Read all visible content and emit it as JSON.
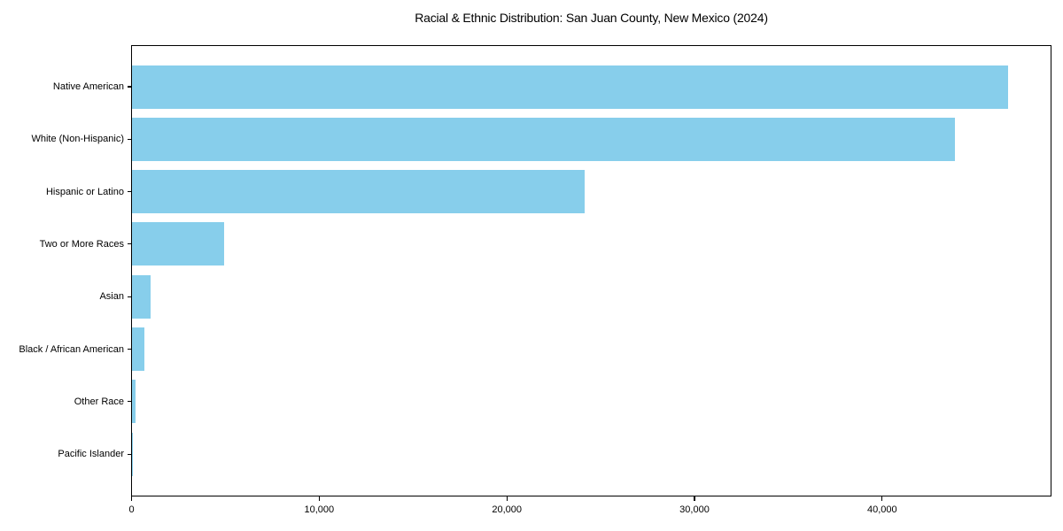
{
  "figure": {
    "title": "Racial & Ethnic Distribution: San Juan County, New Mexico (2024)"
  },
  "chart_data": {
    "type": "bar",
    "orientation": "horizontal",
    "title": "Racial & Ethnic Distribution: San Juan County, New Mexico (2024)",
    "categories": [
      "Native American",
      "White (Non-Hispanic)",
      "Hispanic or Latino",
      "Two or More Races",
      "Asian",
      "Black / African American",
      "Other Race",
      "Pacific Islander"
    ],
    "values": [
      46700,
      43900,
      24150,
      4950,
      1000,
      700,
      210,
      50
    ],
    "xlabel": "",
    "ylabel": "",
    "xlim": [
      0,
      49000
    ],
    "x_ticks": [
      0,
      10000,
      20000,
      30000,
      40000
    ],
    "x_tick_labels": [
      "0",
      "10,000",
      "20,000",
      "30,000",
      "40,000"
    ],
    "bar_color": "#87CEEB",
    "grid": false,
    "legend": null,
    "background_color": "#ffffff",
    "text_color": "#000000"
  }
}
